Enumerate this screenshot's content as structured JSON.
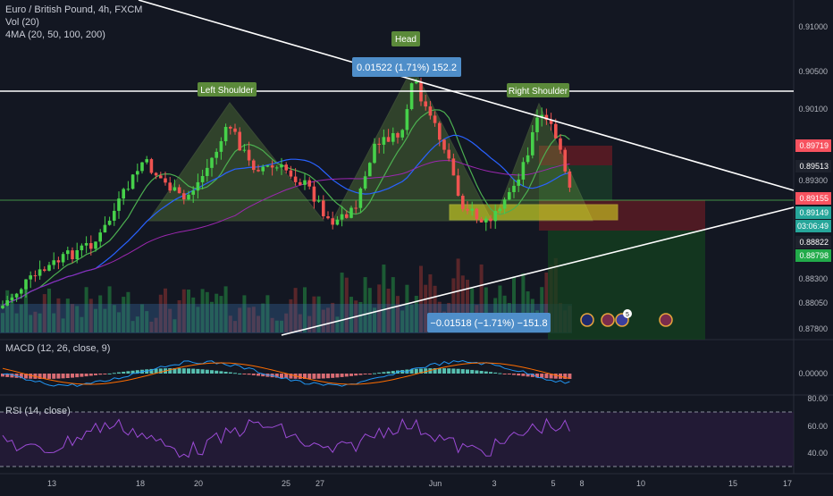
{
  "header": {
    "symbol": "Euro / British Pound, 4h, FXCM",
    "vol": "Vol (20)",
    "ma": "4MA (20, 50, 100, 200)"
  },
  "panes": {
    "macd_label": "MACD (12, 26, close, 9)",
    "rsi_label": "RSI (14, close)"
  },
  "annotations": {
    "left_shoulder": "Left Shoulder",
    "head": "Head",
    "right_shoulder": "Right Shoulder",
    "measure_up": "0.01522 (1.71%) 152.2",
    "measure_down": "−0.01518 (−1.71%) −151.8",
    "event_count": "5"
  },
  "price_axis": {
    "ticks": [
      "0.91000",
      "0.90500",
      "0.90100",
      "0.89300",
      "0.88300",
      "0.88050",
      "0.87800"
    ],
    "badges": [
      {
        "text": "0.89719",
        "color": "#f7525f"
      },
      {
        "text": "0.89513",
        "color": "#1e222d"
      },
      {
        "text": "0.89155",
        "color": "#f7525f"
      },
      {
        "text": "0.89149",
        "color": "#26a69a"
      },
      {
        "text": "03:06:49",
        "color": "#26a69a"
      },
      {
        "text": "0.88822",
        "color": "#1e222d"
      },
      {
        "text": "0.88798",
        "color": "#22ab4a"
      }
    ]
  },
  "macd_axis": {
    "ticks": [
      "0.00000"
    ]
  },
  "rsi_axis": {
    "ticks": [
      "80.00",
      "60.00",
      "40.00"
    ]
  },
  "time_axis": {
    "ticks": [
      "13",
      "18",
      "20",
      "25",
      "27",
      "Jun",
      "3",
      "5",
      "8",
      "10",
      "15",
      "17"
    ]
  },
  "chart_data": {
    "type": "candlestick",
    "title": "Euro / British Pound, 4h, FXCM",
    "y_range": [
      0.875,
      0.912
    ],
    "pattern": "head-and-shoulders",
    "neckline": 0.8912,
    "head_high": 0.905,
    "series": [
      {
        "name": "MACD (12, 26, close, 9)"
      },
      {
        "name": "RSI (14, close)"
      }
    ]
  }
}
